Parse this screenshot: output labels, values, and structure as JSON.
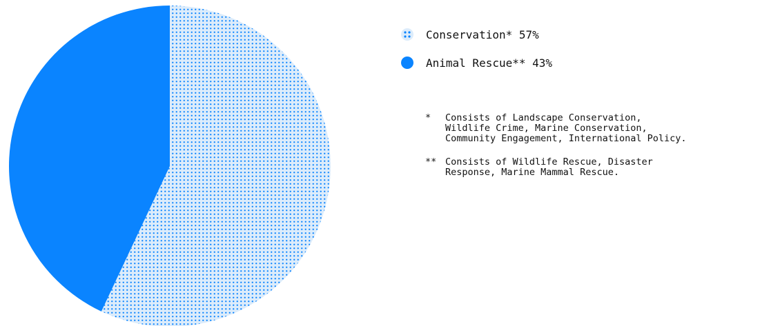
{
  "chart_data": {
    "type": "pie",
    "slices": [
      {
        "label": "Conservation*",
        "value": 57,
        "value_label": "57%",
        "color": "#0a84ff",
        "fill_style": "dotted",
        "background": "#dcecfb"
      },
      {
        "label": "Animal Rescue**",
        "value": 43,
        "value_label": "43%",
        "color": "#0a84ff",
        "fill_style": "solid"
      }
    ],
    "legend_position": "right",
    "footnotes": [
      {
        "mark": "*",
        "text": "Consists of Landscape Conservation,\nWildlife Crime, Marine Conservation,\nCommunity Engagement, International Policy."
      },
      {
        "mark": "**",
        "text": "Consists of Wildlife Rescue, Disaster\nResponse, Marine Mammal Rescue."
      }
    ]
  }
}
